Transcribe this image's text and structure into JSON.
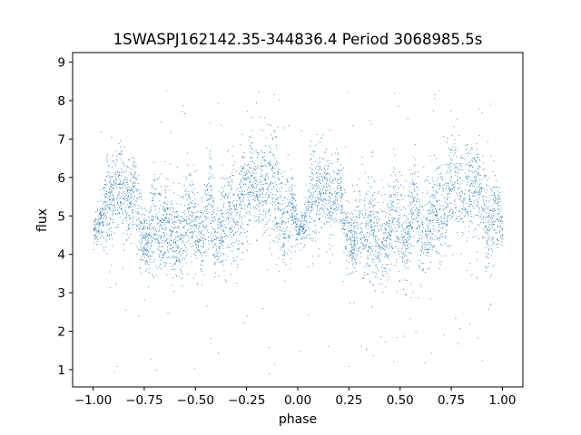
{
  "chart_data": {
    "type": "scatter",
    "title": "1SWASPJ162142.35-344836.4 Period 3068985.5s",
    "xlabel": "phase",
    "ylabel": "flux",
    "xlim": [
      -1.1,
      1.1
    ],
    "ylim": [
      0.55,
      9.25
    ],
    "xticks": [
      "−1.00",
      "−0.75",
      "−0.50",
      "−0.25",
      "0.00",
      "0.25",
      "0.50",
      "0.75",
      "1.00"
    ],
    "yticks": [
      "1",
      "2",
      "3",
      "4",
      "5",
      "6",
      "7",
      "8",
      "9"
    ],
    "xtick_values": [
      -1.0,
      -0.75,
      -0.5,
      -0.25,
      0.0,
      0.25,
      0.5,
      0.75,
      1.0
    ],
    "ytick_values": [
      1,
      2,
      3,
      4,
      5,
      6,
      7,
      8,
      9
    ],
    "grid": false,
    "color": "#1f77b4",
    "marker": "small dot",
    "series": [
      {
        "x": [
          -1.0,
          -0.97,
          -0.93,
          -0.9,
          -0.87,
          -0.84,
          -0.8,
          -0.77,
          -0.73,
          -0.7,
          -0.67,
          -0.63,
          -0.6,
          -0.57,
          -0.53,
          -0.5,
          -0.47,
          -0.43,
          -0.4,
          -0.37,
          -0.33,
          -0.3,
          -0.27,
          -0.23,
          -0.2,
          -0.17,
          -0.13,
          -0.1,
          -0.07,
          -0.03,
          0.0,
          0.03,
          0.07,
          0.1,
          0.13,
          0.17,
          0.2,
          0.23,
          0.27,
          0.3,
          0.33,
          0.37,
          0.4,
          0.43,
          0.47,
          0.5,
          0.53,
          0.57,
          0.6,
          0.63,
          0.67,
          0.7,
          0.73,
          0.77,
          0.8,
          0.84,
          0.87,
          0.9,
          0.93,
          0.97,
          1.0
        ],
        "y": [
          4.6,
          4.8,
          5.6,
          5.5,
          5.8,
          5.2,
          5.9,
          4.6,
          4.3,
          4.9,
          4.6,
          4.8,
          4.3,
          4.4,
          5.1,
          4.6,
          4.2,
          5.8,
          4.2,
          4.8,
          5.2,
          5.0,
          5.6,
          6.0,
          5.5,
          5.8,
          5.9,
          5.5,
          4.6,
          5.4,
          4.6,
          4.8,
          5.6,
          5.5,
          5.8,
          5.2,
          5.9,
          4.6,
          4.3,
          4.9,
          4.6,
          4.8,
          4.3,
          4.4,
          5.1,
          4.6,
          4.2,
          5.8,
          4.2,
          4.8,
          5.2,
          5.0,
          5.6,
          6.0,
          5.5,
          5.8,
          5.9,
          5.5,
          4.6,
          5.4,
          4.6
        ],
        "y_spread": [
          0.3,
          0.5,
          1.2,
          1.0,
          1.1,
          1.0,
          0.8,
          1.0,
          0.7,
          1.2,
          1.0,
          1.3,
          1.0,
          0.9,
          1.4,
          1.0,
          0.9,
          1.0,
          0.8,
          1.2,
          1.2,
          1.2,
          1.2,
          1.2,
          1.0,
          1.2,
          1.2,
          1.3,
          1.0,
          1.1,
          0.3,
          0.5,
          1.2,
          1.0,
          1.1,
          1.0,
          0.8,
          1.0,
          0.7,
          1.2,
          1.0,
          1.3,
          1.0,
          0.9,
          1.4,
          1.0,
          0.9,
          1.0,
          0.8,
          1.2,
          1.2,
          1.2,
          1.2,
          1.2,
          1.0,
          1.2,
          1.2,
          1.3,
          1.0,
          1.1,
          0.3
        ]
      }
    ]
  }
}
